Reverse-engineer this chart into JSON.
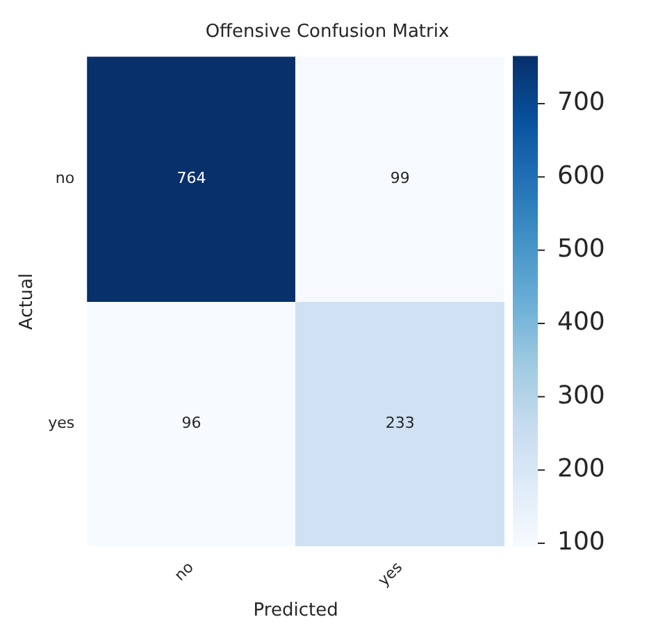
{
  "chart_data": {
    "type": "heatmap",
    "title": "Offensive Confusion Matrix",
    "xlabel": "Predicted",
    "ylabel": "Actual",
    "categories": [
      "no",
      "yes"
    ],
    "y_categories": [
      "no",
      "yes"
    ],
    "cells": [
      [
        764,
        99
      ],
      [
        96,
        233
      ]
    ],
    "data_labels": true,
    "clim": [
      96,
      764
    ],
    "cticks": [
      100,
      200,
      300,
      400,
      500,
      600,
      700
    ]
  }
}
